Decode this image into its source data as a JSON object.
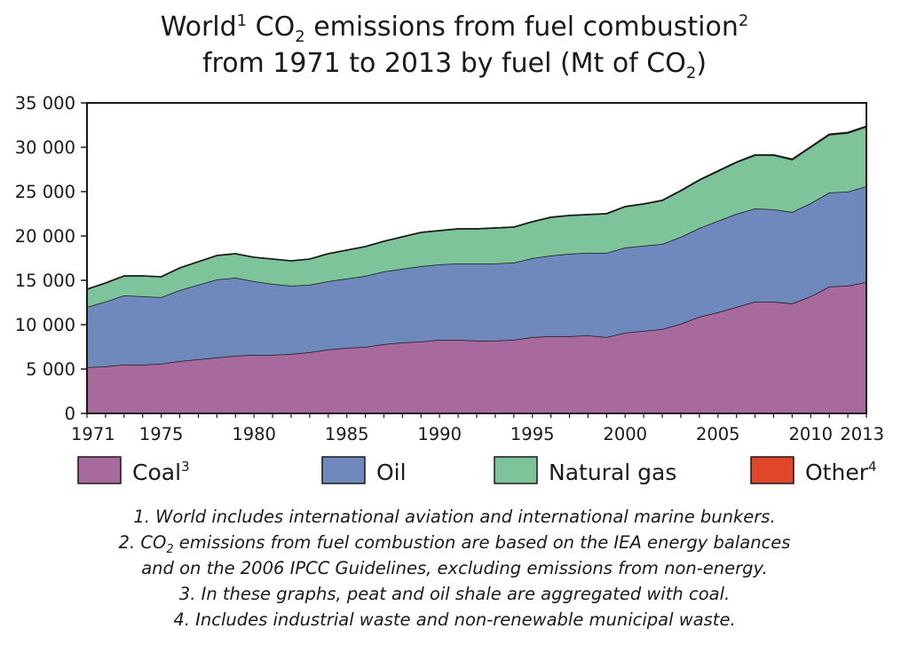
{
  "title": {
    "line1": {
      "a": "World",
      "a_sup": "1",
      "b": " CO",
      "b_sub": "2",
      "c": " emissions from fuel combustion",
      "c_sup": "2"
    },
    "line2": {
      "a": "from 1971 to 2013 by fuel (Mt of CO",
      "a_sub": "2",
      "b": ")"
    }
  },
  "colors": {
    "coal": "#a86a9c",
    "oil": "#6f89bc",
    "gas": "#7dc49a",
    "other": "#e0472a",
    "outline": "#1a1a1a"
  },
  "chart_data": {
    "type": "area",
    "stacked": true,
    "x": [
      1971,
      1972,
      1973,
      1974,
      1975,
      1976,
      1977,
      1978,
      1979,
      1980,
      1981,
      1982,
      1983,
      1984,
      1985,
      1986,
      1987,
      1988,
      1989,
      1990,
      1991,
      1992,
      1993,
      1994,
      1995,
      1996,
      1997,
      1998,
      1999,
      2000,
      2001,
      2002,
      2003,
      2004,
      2005,
      2006,
      2007,
      2008,
      2009,
      2010,
      2011,
      2012,
      2013
    ],
    "series": [
      {
        "name": "Coal",
        "name_sup": "3",
        "values": [
          5200,
          5300,
          5500,
          5500,
          5600,
          5900,
          6100,
          6300,
          6500,
          6600,
          6600,
          6700,
          6900,
          7200,
          7400,
          7500,
          7800,
          8000,
          8100,
          8300,
          8300,
          8200,
          8200,
          8300,
          8600,
          8700,
          8700,
          8800,
          8600,
          9100,
          9300,
          9500,
          10100,
          10900,
          11400,
          12000,
          12600,
          12600,
          12400,
          13200,
          14300,
          14400,
          14800
        ]
      },
      {
        "name": "Oil",
        "name_sup": "",
        "values": [
          6800,
          7300,
          7800,
          7700,
          7500,
          8000,
          8400,
          8800,
          8800,
          8300,
          8000,
          7700,
          7600,
          7700,
          7800,
          8000,
          8200,
          8300,
          8500,
          8500,
          8600,
          8700,
          8700,
          8700,
          8900,
          9100,
          9300,
          9300,
          9500,
          9600,
          9600,
          9600,
          9800,
          10000,
          10300,
          10500,
          10500,
          10400,
          10300,
          10500,
          10600,
          10600,
          10800
        ]
      },
      {
        "name": "Natural gas",
        "name_sup": "",
        "values": [
          2000,
          2100,
          2200,
          2300,
          2300,
          2500,
          2600,
          2700,
          2700,
          2700,
          2800,
          2800,
          2900,
          3100,
          3200,
          3300,
          3400,
          3600,
          3800,
          3800,
          3900,
          3900,
          4000,
          4000,
          4100,
          4300,
          4300,
          4300,
          4400,
          4600,
          4700,
          4900,
          5200,
          5400,
          5600,
          5800,
          6000,
          6100,
          5900,
          6300,
          6500,
          6600,
          6700
        ]
      },
      {
        "name": "Other",
        "name_sup": "4",
        "values": [
          2,
          2,
          2,
          3,
          3,
          3,
          3,
          4,
          4,
          4,
          5,
          5,
          5,
          6,
          6,
          7,
          7,
          8,
          9,
          10,
          11,
          11,
          12,
          13,
          14,
          15,
          16,
          17,
          18,
          20,
          22,
          25,
          28,
          32,
          36,
          40,
          45,
          50,
          55,
          60,
          65,
          70,
          75
        ]
      }
    ],
    "ylim": [
      0,
      35000
    ],
    "yticks": [
      "0",
      "5 000",
      "10 000",
      "15 000",
      "20 000",
      "25 000",
      "30 000",
      "35 000"
    ],
    "ytick_values": [
      0,
      5000,
      10000,
      15000,
      20000,
      25000,
      30000,
      35000
    ],
    "xtick_labels": [
      "1971",
      "1975",
      "1980",
      "1985",
      "1990",
      "1995",
      "2000",
      "2005",
      "2010",
      "2013"
    ],
    "xtick_values": [
      1971,
      1975,
      1980,
      1985,
      1990,
      1995,
      2000,
      2005,
      2010,
      2013
    ],
    "grid": false,
    "legend_position": "bottom"
  },
  "notes": {
    "n1": "1. World includes international aviation and international marine bunkers.",
    "n2": {
      "a": "2. CO",
      "sub": "2",
      "b": " emissions from fuel combustion are based on the IEA energy balances"
    },
    "n2b": "and on the 2006 IPCC Guidelines, excluding emissions from non-energy.",
    "n3": "3. In these graphs, peat and oil shale are aggregated with coal.",
    "n4": "4. Includes industrial waste and non-renewable municipal waste."
  }
}
